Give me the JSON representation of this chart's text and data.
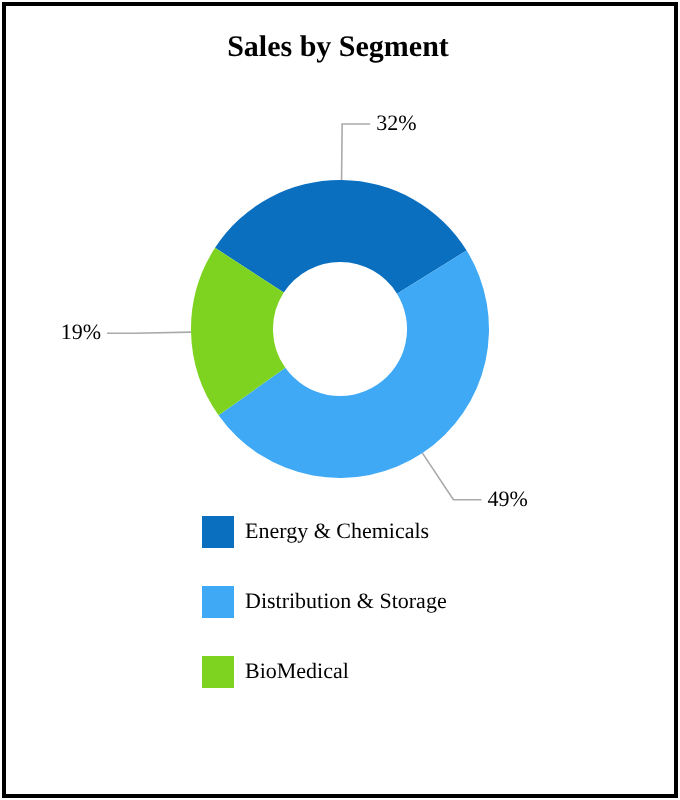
{
  "chart_data": {
    "type": "donut",
    "title": "Sales by Segment",
    "categories": [
      "Energy & Chemicals",
      "Distribution & Storage",
      "BioMedical"
    ],
    "values": [
      32,
      49,
      19
    ],
    "colors": [
      "#0b6fc0",
      "#3fa9f5",
      "#7ed321"
    ],
    "value_labels": [
      "32%",
      "49%",
      "19%"
    ],
    "legend": "bottom"
  }
}
